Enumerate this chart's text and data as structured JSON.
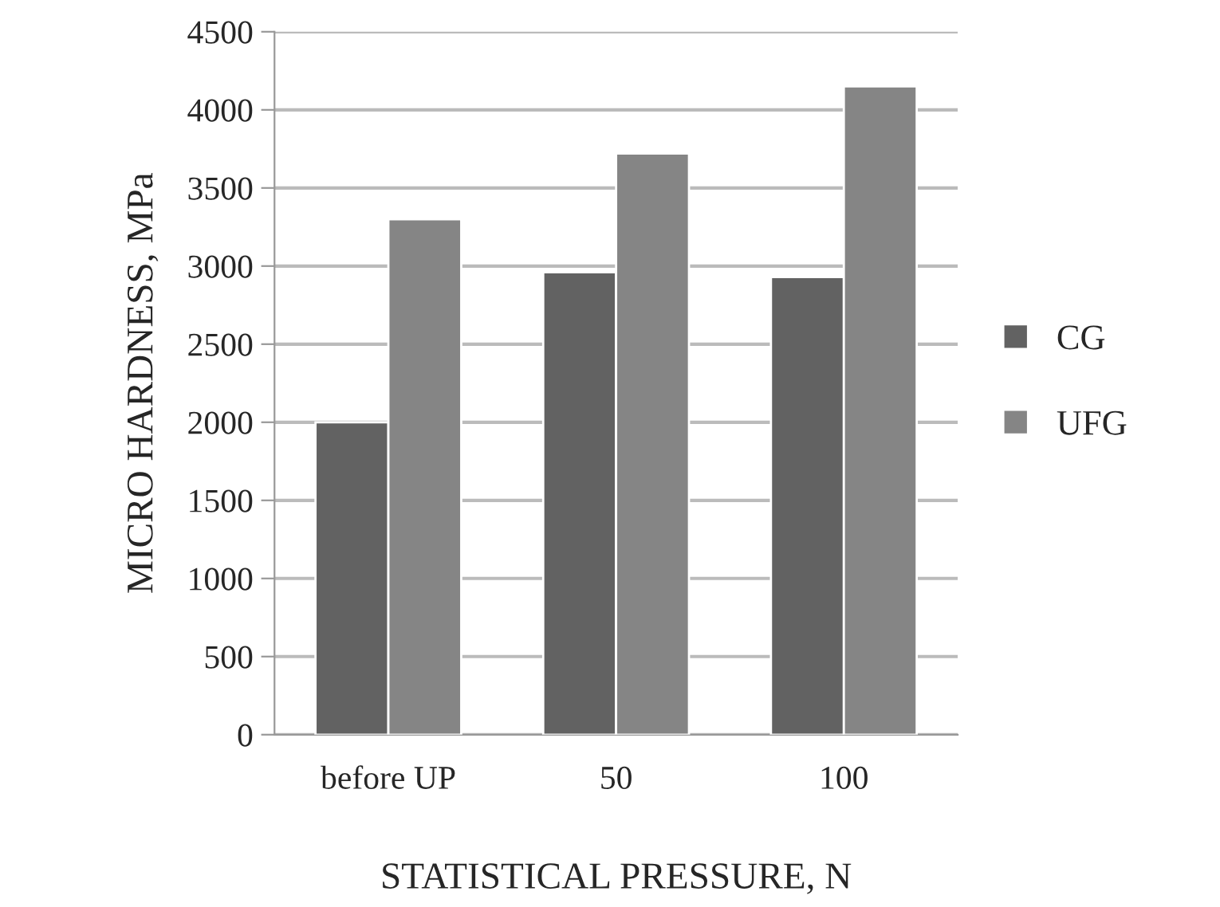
{
  "chart_data": {
    "type": "bar",
    "xlabel": "STATISTICAL PRESSURE, N",
    "ylabel": "MICRO HARDNESS, MPa",
    "categories": [
      "before UP",
      "50",
      "100"
    ],
    "series": [
      {
        "name": "CG",
        "color": "#626262",
        "values": [
          2000,
          2960,
          2930
        ]
      },
      {
        "name": "UFG",
        "color": "#858585",
        "values": [
          3300,
          3720,
          4150
        ]
      }
    ],
    "ylim": [
      0,
      4500
    ],
    "yticks": [
      0,
      500,
      1000,
      1500,
      2000,
      2500,
      3000,
      3500,
      4000,
      4500
    ],
    "grid": "y",
    "legend": "right"
  }
}
